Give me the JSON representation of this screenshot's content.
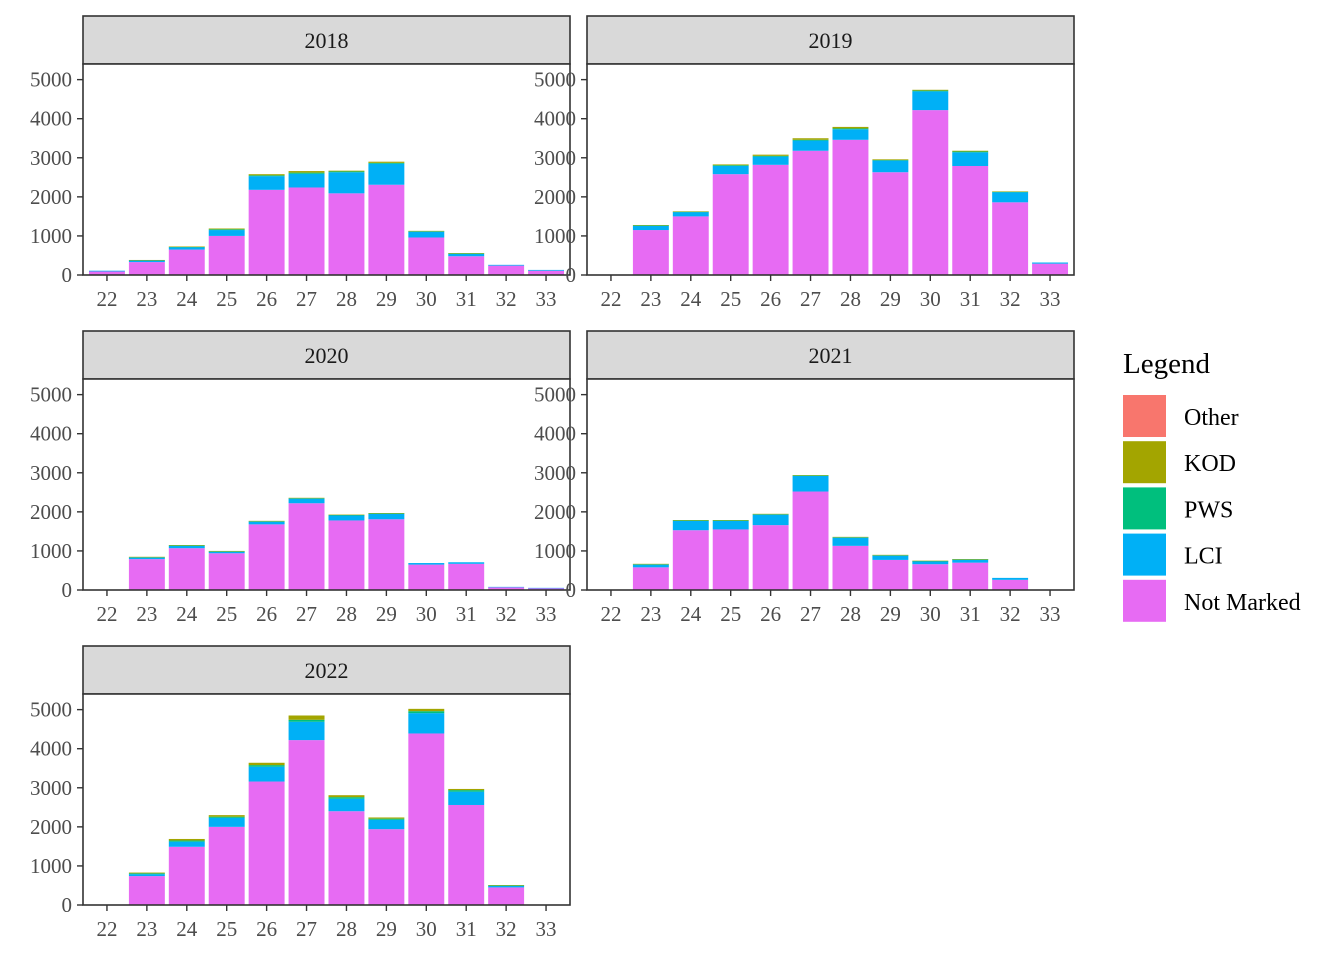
{
  "chart_data": {
    "type": "bar",
    "stacked": true,
    "facet_by": "year",
    "categories": [
      "22",
      "23",
      "24",
      "25",
      "26",
      "27",
      "28",
      "29",
      "30",
      "31",
      "32",
      "33"
    ],
    "y_ticks": [
      "0",
      "1000",
      "2000",
      "3000",
      "4000",
      "5000"
    ],
    "ylim": [
      0,
      5400
    ],
    "stack_order": [
      "Not Marked",
      "LCI",
      "PWS",
      "KOD",
      "Other"
    ],
    "colors": {
      "Other": "#F8766D",
      "KOD": "#A3A500",
      "PWS": "#00BF7D",
      "LCI": "#00B0F6",
      "Not Marked": "#E76BF3"
    },
    "legend": {
      "title": "Legend",
      "position": "right",
      "items": [
        "Other",
        "KOD",
        "PWS",
        "LCI",
        "Not Marked"
      ]
    },
    "panels": [
      {
        "title": "2018",
        "series": [
          {
            "name": "Not Marked",
            "values": [
              90,
              330,
              650,
              1000,
              2180,
              2240,
              2090,
              2310,
              960,
              480,
              240,
              110
            ]
          },
          {
            "name": "LCI",
            "values": [
              20,
              40,
              60,
              150,
              350,
              350,
              540,
              540,
              150,
              60,
              20,
              20
            ]
          },
          {
            "name": "PWS",
            "values": [
              0,
              10,
              10,
              20,
              20,
              30,
              20,
              20,
              10,
              10,
              0,
              0
            ]
          },
          {
            "name": "KOD",
            "values": [
              0,
              5,
              10,
              20,
              30,
              40,
              20,
              30,
              10,
              10,
              0,
              0
            ]
          },
          {
            "name": "Other",
            "values": [
              0,
              0,
              0,
              0,
              0,
              0,
              0,
              0,
              0,
              0,
              0,
              0
            ]
          }
        ]
      },
      {
        "title": "2019",
        "series": [
          {
            "name": "Not Marked",
            "values": [
              0,
              1150,
              1500,
              2580,
              2820,
              3180,
              3460,
              2630,
              4220,
              2790,
              1860,
              290
            ]
          },
          {
            "name": "LCI",
            "values": [
              0,
              110,
              110,
              210,
              210,
              260,
              270,
              300,
              480,
              350,
              260,
              30
            ]
          },
          {
            "name": "PWS",
            "values": [
              0,
              10,
              10,
              20,
              20,
              20,
              20,
              10,
              20,
              20,
              10,
              0
            ]
          },
          {
            "name": "KOD",
            "values": [
              0,
              10,
              10,
              20,
              30,
              40,
              40,
              20,
              20,
              20,
              10,
              0
            ]
          },
          {
            "name": "Other",
            "values": [
              0,
              0,
              0,
              0,
              0,
              0,
              0,
              0,
              0,
              0,
              0,
              0
            ]
          }
        ]
      },
      {
        "title": "2020",
        "series": [
          {
            "name": "Not Marked",
            "values": [
              0,
              790,
              1070,
              940,
              1680,
              2220,
              1780,
              1810,
              650,
              670,
              70,
              50
            ]
          },
          {
            "name": "LCI",
            "values": [
              0,
              40,
              60,
              40,
              70,
              120,
              130,
              140,
              40,
              40,
              10,
              5
            ]
          },
          {
            "name": "PWS",
            "values": [
              0,
              10,
              10,
              10,
              10,
              10,
              10,
              10,
              0,
              0,
              0,
              0
            ]
          },
          {
            "name": "KOD",
            "values": [
              0,
              10,
              10,
              10,
              10,
              10,
              10,
              10,
              0,
              0,
              0,
              0
            ]
          },
          {
            "name": "Other",
            "values": [
              0,
              0,
              0,
              0,
              0,
              0,
              0,
              0,
              0,
              0,
              0,
              0
            ]
          }
        ]
      },
      {
        "title": "2021",
        "series": [
          {
            "name": "Not Marked",
            "values": [
              0,
              580,
              1530,
              1550,
              1660,
              2520,
              1130,
              770,
              660,
              700,
              260,
              0
            ]
          },
          {
            "name": "LCI",
            "values": [
              0,
              70,
              240,
              220,
              270,
              400,
              210,
              110,
              80,
              80,
              50,
              0
            ]
          },
          {
            "name": "PWS",
            "values": [
              0,
              10,
              10,
              10,
              10,
              10,
              10,
              10,
              5,
              5,
              0,
              0
            ]
          },
          {
            "name": "KOD",
            "values": [
              0,
              10,
              10,
              10,
              10,
              10,
              10,
              10,
              5,
              5,
              0,
              0
            ]
          },
          {
            "name": "Other",
            "values": [
              0,
              0,
              0,
              0,
              0,
              0,
              0,
              0,
              0,
              0,
              0,
              0
            ]
          }
        ]
      },
      {
        "title": "2022",
        "series": [
          {
            "name": "Not Marked",
            "values": [
              0,
              740,
              1490,
              2000,
              3160,
              4220,
              2400,
              1940,
              4390,
              2560,
              450,
              0
            ]
          },
          {
            "name": "LCI",
            "values": [
              0,
              50,
              130,
              230,
              380,
              470,
              320,
              240,
              520,
              340,
              40,
              0
            ]
          },
          {
            "name": "PWS",
            "values": [
              0,
              20,
              30,
              30,
              40,
              50,
              40,
              30,
              50,
              40,
              10,
              0
            ]
          },
          {
            "name": "KOD",
            "values": [
              0,
              20,
              40,
              40,
              60,
              110,
              50,
              30,
              60,
              30,
              10,
              0
            ]
          },
          {
            "name": "Other",
            "values": [
              0,
              0,
              0,
              0,
              0,
              0,
              0,
              0,
              0,
              0,
              0,
              0
            ]
          }
        ]
      }
    ]
  }
}
